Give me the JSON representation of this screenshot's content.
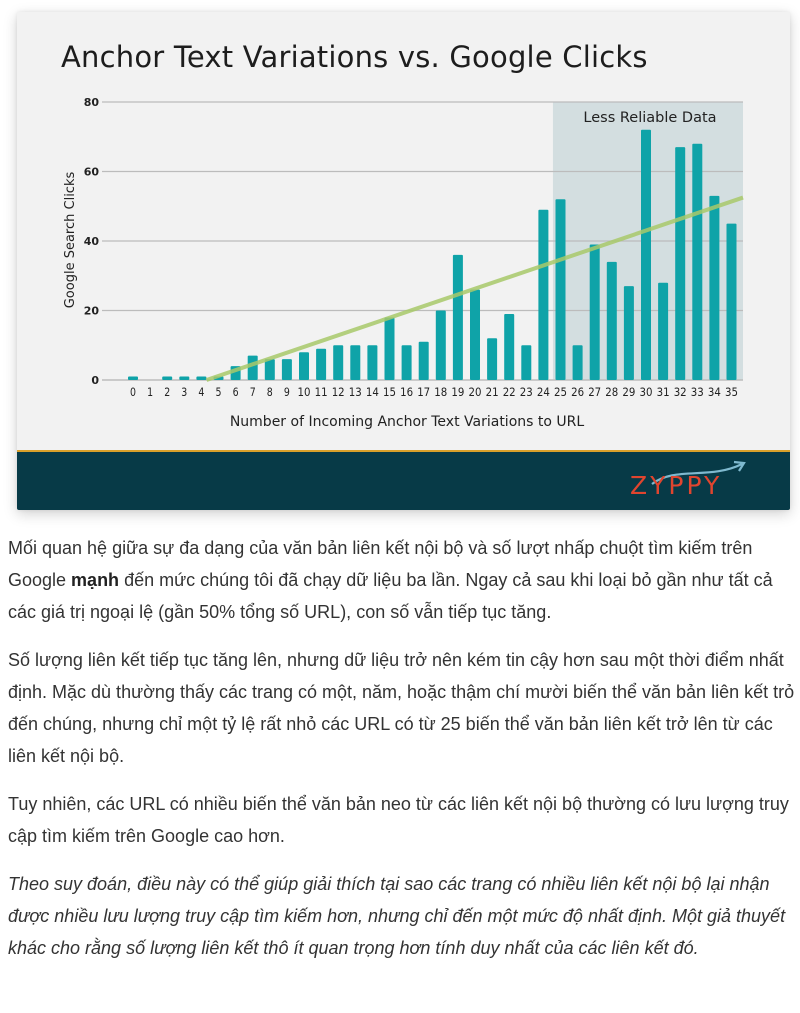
{
  "chart_card": {
    "brand": {
      "logo_text": "ZYPPY",
      "logo_color": "#e0452f",
      "band_color": "#073a47",
      "band_border_color": "#d9a02b"
    }
  },
  "chart_data": {
    "type": "bar",
    "title": "Anchor Text Variations vs. Google Clicks",
    "xlabel": "Number of Incoming Anchor Text Variations to URL",
    "ylabel": "Google Search Clicks",
    "ylim": [
      0,
      80
    ],
    "yticks": [
      0,
      20,
      40,
      60,
      80
    ],
    "grid": true,
    "legend": null,
    "categories": [
      "0",
      "1",
      "2",
      "3",
      "4",
      "5",
      "6",
      "7",
      "8",
      "9",
      "10",
      "11",
      "12",
      "13",
      "14",
      "15",
      "16",
      "17",
      "18",
      "19",
      "20",
      "21",
      "22",
      "23",
      "24",
      "25",
      "26",
      "27",
      "28",
      "29",
      "30",
      "31",
      "32",
      "33",
      "34",
      "35"
    ],
    "values": [
      1,
      0,
      1,
      1,
      1,
      1,
      4,
      7,
      6,
      6,
      8,
      9,
      10,
      10,
      10,
      18,
      10,
      11,
      20,
      36,
      26,
      12,
      19,
      10,
      49,
      52,
      10,
      39,
      34,
      27,
      72,
      28,
      67,
      68,
      53,
      45
    ],
    "bar_color": "#0fa3a8",
    "trendline": {
      "type": "linear",
      "start": {
        "x": 4.3,
        "y": 0
      },
      "end": {
        "x": 35.6,
        "y": 52.5
      },
      "color": "#a8c96a"
    },
    "annotations": [
      {
        "type": "shaded_region",
        "label": "Less Reliable Data",
        "x_start": 24.5,
        "x_end": 35.6,
        "color": "#d3dee0"
      }
    ]
  },
  "article": {
    "paragraphs": [
      {
        "before": "Mối quan hệ giữa sự đa dạng của văn bản liên kết nội bộ và số lượt nhấp chuột tìm kiếm trên Google ",
        "bold": "mạnh",
        "after": " đến mức chúng tôi đã chạy dữ liệu ba lần. Ngay cả sau khi loại bỏ gần như tất cả các giá trị ngoại lệ (gần 50% tổng số URL), con số vẫn tiếp tục tăng."
      },
      {
        "text": "Số lượng liên kết tiếp tục tăng lên, nhưng dữ liệu trở nên kém tin cậy hơn sau một thời điểm nhất định. Mặc dù thường thấy các trang có một, năm, hoặc thậm chí mười biến thể văn bản liên kết trỏ đến chúng, nhưng chỉ một tỷ lệ rất nhỏ các URL có từ 25 biến thể văn bản liên kết trở lên từ các liên kết nội bộ."
      },
      {
        "text": "Tuy nhiên, các URL có nhiều biến thể văn bản neo từ các liên kết nội bộ thường có lưu lượng truy cập tìm kiếm trên Google cao hơn."
      },
      {
        "text": "Theo suy đoán, điều này có thể giúp giải thích tại sao các trang có nhiều liên kết nội bộ lại nhận được nhiều lưu lượng truy cập tìm kiếm hơn, nhưng chỉ đến một mức độ nhất định. Một giả thuyết khác cho rằng số lượng liên kết thô ít quan trọng hơn tính duy nhất của các liên kết đó."
      }
    ]
  }
}
